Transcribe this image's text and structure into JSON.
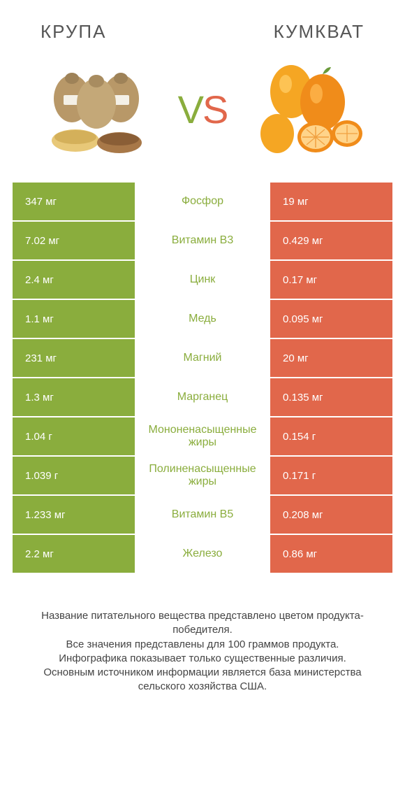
{
  "header": {
    "left_title": "КРУПА",
    "right_title": "КУМКВАТ",
    "vs_v": "V",
    "vs_s": "S"
  },
  "colors": {
    "left_bg": "#8aad3d",
    "right_bg": "#e1674b",
    "nutrient_left_winner": "#8aad3d",
    "nutrient_right_winner": "#e1674b",
    "text_white": "#ffffff",
    "background": "#ffffff",
    "header_text": "#555555",
    "footer_text": "#444444"
  },
  "typography": {
    "header_fontsize": 26,
    "vs_fontsize": 56,
    "cell_fontsize": 15,
    "nutrient_fontsize": 16,
    "footer_fontsize": 15
  },
  "table": {
    "type": "comparison-table",
    "rows": [
      {
        "nutrient": "Фосфор",
        "left": "347 мг",
        "right": "19 мг",
        "winner": "left"
      },
      {
        "nutrient": "Витамин B3",
        "left": "7.02 мг",
        "right": "0.429 мг",
        "winner": "left"
      },
      {
        "nutrient": "Цинк",
        "left": "2.4 мг",
        "right": "0.17 мг",
        "winner": "left"
      },
      {
        "nutrient": "Медь",
        "left": "1.1 мг",
        "right": "0.095 мг",
        "winner": "left"
      },
      {
        "nutrient": "Магний",
        "left": "231 мг",
        "right": "20 мг",
        "winner": "left"
      },
      {
        "nutrient": "Марганец",
        "left": "1.3 мг",
        "right": "0.135 мг",
        "winner": "left"
      },
      {
        "nutrient": "Мононенасыщенные жиры",
        "left": "1.04 г",
        "right": "0.154 г",
        "winner": "left"
      },
      {
        "nutrient": "Полиненасыщенные жиры",
        "left": "1.039 г",
        "right": "0.171 г",
        "winner": "left"
      },
      {
        "nutrient": "Витамин B5",
        "left": "1.233 мг",
        "right": "0.208 мг",
        "winner": "left"
      },
      {
        "nutrient": "Железо",
        "left": "2.2 мг",
        "right": "0.86 мг",
        "winner": "left"
      }
    ]
  },
  "footer": {
    "line1": "Название питательного вещества представлено цветом продукта-победителя.",
    "line2": "Все значения представлены для 100 граммов продукта.",
    "line3": "Инфографика показывает только существенные различия.",
    "line4": "Основным источником информации является база министерства сельского хозяйства США."
  }
}
